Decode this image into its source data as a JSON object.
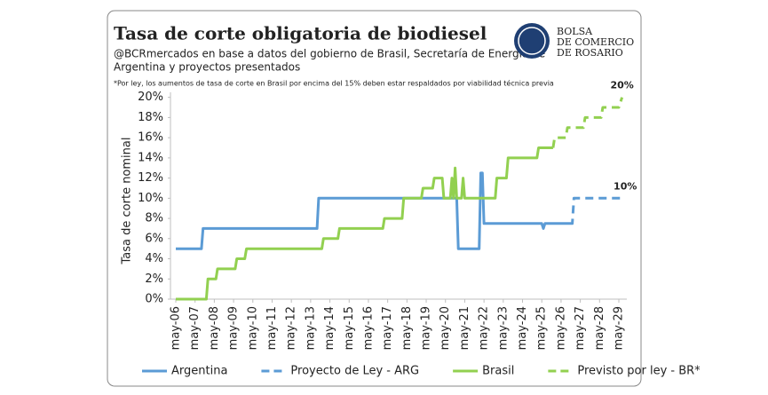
{
  "logo": [
    "BOLSA",
    "DE COMERCIO",
    "DE ROSARIO"
  ],
  "chart_data": {
    "type": "line",
    "title": "Tasa de corte obligatoria de biodiesel",
    "subtitle": [
      "@BCRmercados en base a datos del gobierno de Brasil, Secretaría de Energía de",
      "Argentina y proyectos presentados"
    ],
    "note": "*Por ley, los aumentos de tasa de corte en Brasil por encima del 15% deben estar respaldados por viabilidad técnica previa",
    "ylabel": "Tasa de corte nominal",
    "ylim": [
      0,
      20.5
    ],
    "yticks": [
      {
        "value": 0,
        "label": "0%"
      },
      {
        "value": 2,
        "label": "2%"
      },
      {
        "value": 4,
        "label": "4%"
      },
      {
        "value": 6,
        "label": "6%"
      },
      {
        "value": 8,
        "label": "8%"
      },
      {
        "value": 10,
        "label": "10%"
      },
      {
        "value": 12,
        "label": "12%"
      },
      {
        "value": 14,
        "label": "14%"
      },
      {
        "value": 16,
        "label": "16%"
      },
      {
        "value": 18,
        "label": "18%"
      },
      {
        "value": 20,
        "label": "20%"
      }
    ],
    "xticks": [
      "may-06",
      "may-07",
      "may-08",
      "may-09",
      "may-10",
      "may-11",
      "may-12",
      "may-13",
      "may-14",
      "may-15",
      "may-16",
      "may-17",
      "may-18",
      "may-19",
      "may-20",
      "may-21",
      "may-22",
      "may-23",
      "may-24",
      "may-25",
      "may-26",
      "may-27",
      "may-28",
      "may-29"
    ],
    "grid": false,
    "legend": "bottom",
    "series": [
      {
        "name": "Argentina",
        "color": "#5b9bd5",
        "dashed": false,
        "x": [
          "may-06",
          "sep-07",
          "oct-07",
          "sep-13",
          "oct-13",
          "dic-20",
          "ene-21",
          "feb-22",
          "mar-22",
          "abr-22",
          "may-22",
          "may-25",
          "jun-25",
          "jul-25",
          "oct-26"
        ],
        "values": [
          5,
          5,
          7,
          7,
          10,
          10,
          5,
          5,
          12.5,
          12.5,
          7.5,
          7.5,
          7,
          7.5,
          7.5
        ]
      },
      {
        "name": "Proyecto de Ley - ARG",
        "color": "#5b9bd5",
        "dashed": true,
        "x": [
          "oct-26",
          "dic-26",
          "ene-27",
          "sep-29"
        ],
        "values": [
          7.5,
          7.5,
          10,
          10
        ]
      },
      {
        "name": "Brasil",
        "color": "#92d050",
        "dashed": false,
        "x": [
          "may-06",
          "dic-07",
          "ene-08",
          "jun-08",
          "jul-08",
          "jun-09",
          "jul-09",
          "dic-09",
          "ene-10",
          "dic-13",
          "ene-14",
          "oct-14",
          "nov-14",
          "feb-17",
          "mar-17",
          "feb-18",
          "mar-18",
          "feb-19",
          "mar-19",
          "sep-19",
          "oct-19",
          "mar-20",
          "abr-20",
          "ago-20",
          "sep-20",
          "oct-20",
          "nov-20",
          "dic-20",
          "mar-21",
          "abr-21",
          "may-21",
          "dic-22",
          "ene-23",
          "jul-23",
          "ago-23",
          "feb-25",
          "mar-25",
          "dic-25"
        ],
        "values": [
          0,
          0,
          2,
          2,
          3,
          3,
          4,
          4,
          5,
          5,
          6,
          6,
          7,
          7,
          8,
          8,
          10,
          10,
          11,
          11,
          12,
          12,
          10,
          10,
          12,
          10,
          13,
          10,
          10,
          12,
          10,
          10,
          12,
          12,
          14,
          14,
          15,
          15
        ]
      },
      {
        "name": "Previsto por ley - BR*",
        "color": "#92d050",
        "dashed": true,
        "x": [
          "dic-25",
          "ene-26",
          "ago-26",
          "sep-26",
          "jul-27",
          "ago-27",
          "jun-28",
          "jul-28",
          "may-29",
          "jul-29"
        ],
        "values": [
          15,
          16,
          16,
          17,
          17,
          18,
          18,
          19,
          19,
          20
        ]
      }
    ],
    "annotations": [
      {
        "value": 20,
        "label": "20%",
        "series": 3
      },
      {
        "value": 10,
        "label": "10%",
        "series": 1
      }
    ]
  }
}
